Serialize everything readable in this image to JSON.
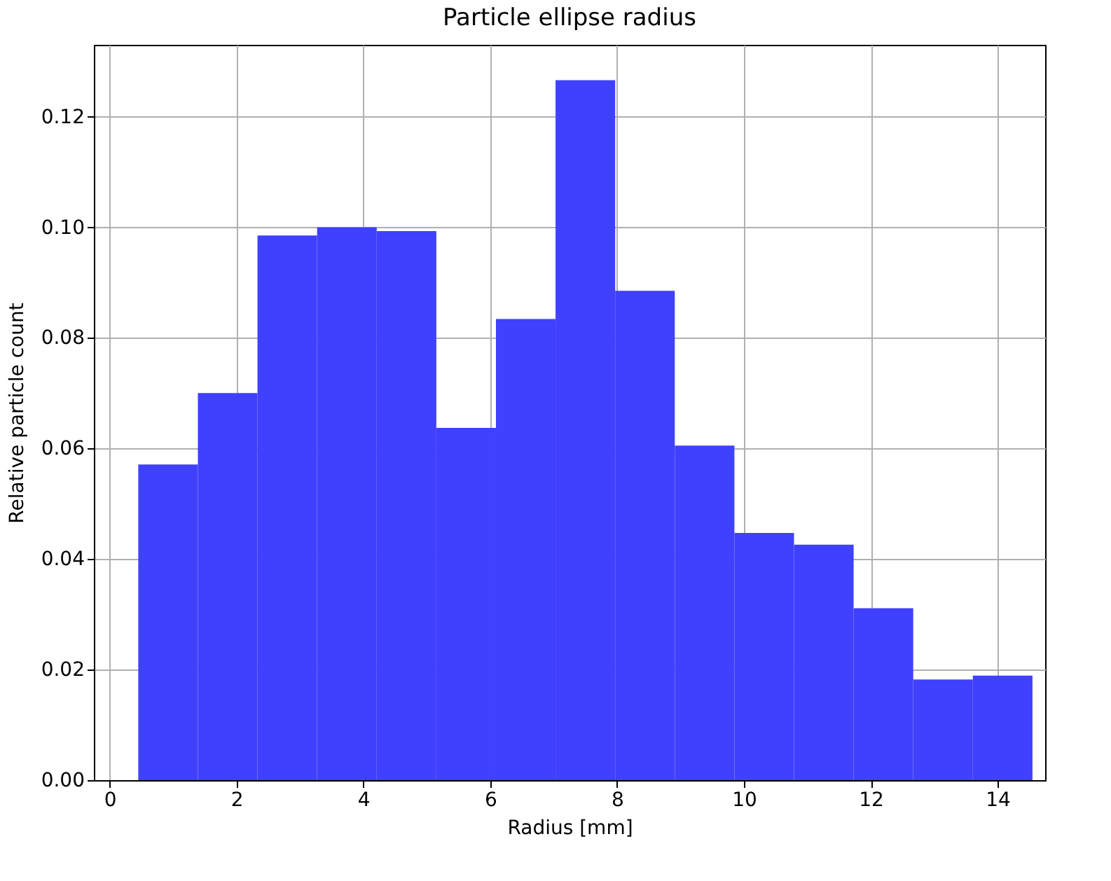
{
  "chart_data": {
    "type": "histogram",
    "title": "Particle ellipse radius",
    "xlabel": "Radius [mm]",
    "ylabel": "Relative particle count",
    "bins": [
      0.45,
      1.39,
      2.33,
      3.27,
      4.21,
      5.15,
      6.09,
      7.03,
      7.97,
      8.91,
      9.85,
      10.79,
      11.73,
      12.67,
      13.61,
      14.55
    ],
    "values": [
      0.0571,
      0.07,
      0.0985,
      0.1,
      0.0993,
      0.0637,
      0.0834,
      0.1266,
      0.0885,
      0.0605,
      0.0447,
      0.0426,
      0.0311,
      0.0182,
      0.0189
    ],
    "color": "#4040ff",
    "xlim": [
      -0.25,
      14.75
    ],
    "xticks": [
      0,
      2,
      4,
      6,
      8,
      10,
      12,
      14
    ],
    "ylim": [
      0,
      0.133
    ],
    "yticks": [
      {
        "value": 0,
        "label": "0.00"
      },
      {
        "value": 0.02,
        "label": "0.02"
      },
      {
        "value": 0.04,
        "label": "0.04"
      },
      {
        "value": 0.06,
        "label": "0.06"
      },
      {
        "value": 0.08,
        "label": "0.08"
      },
      {
        "value": 0.1,
        "label": "0.10"
      },
      {
        "value": 0.12,
        "label": "0.12"
      }
    ],
    "grid": true
  }
}
